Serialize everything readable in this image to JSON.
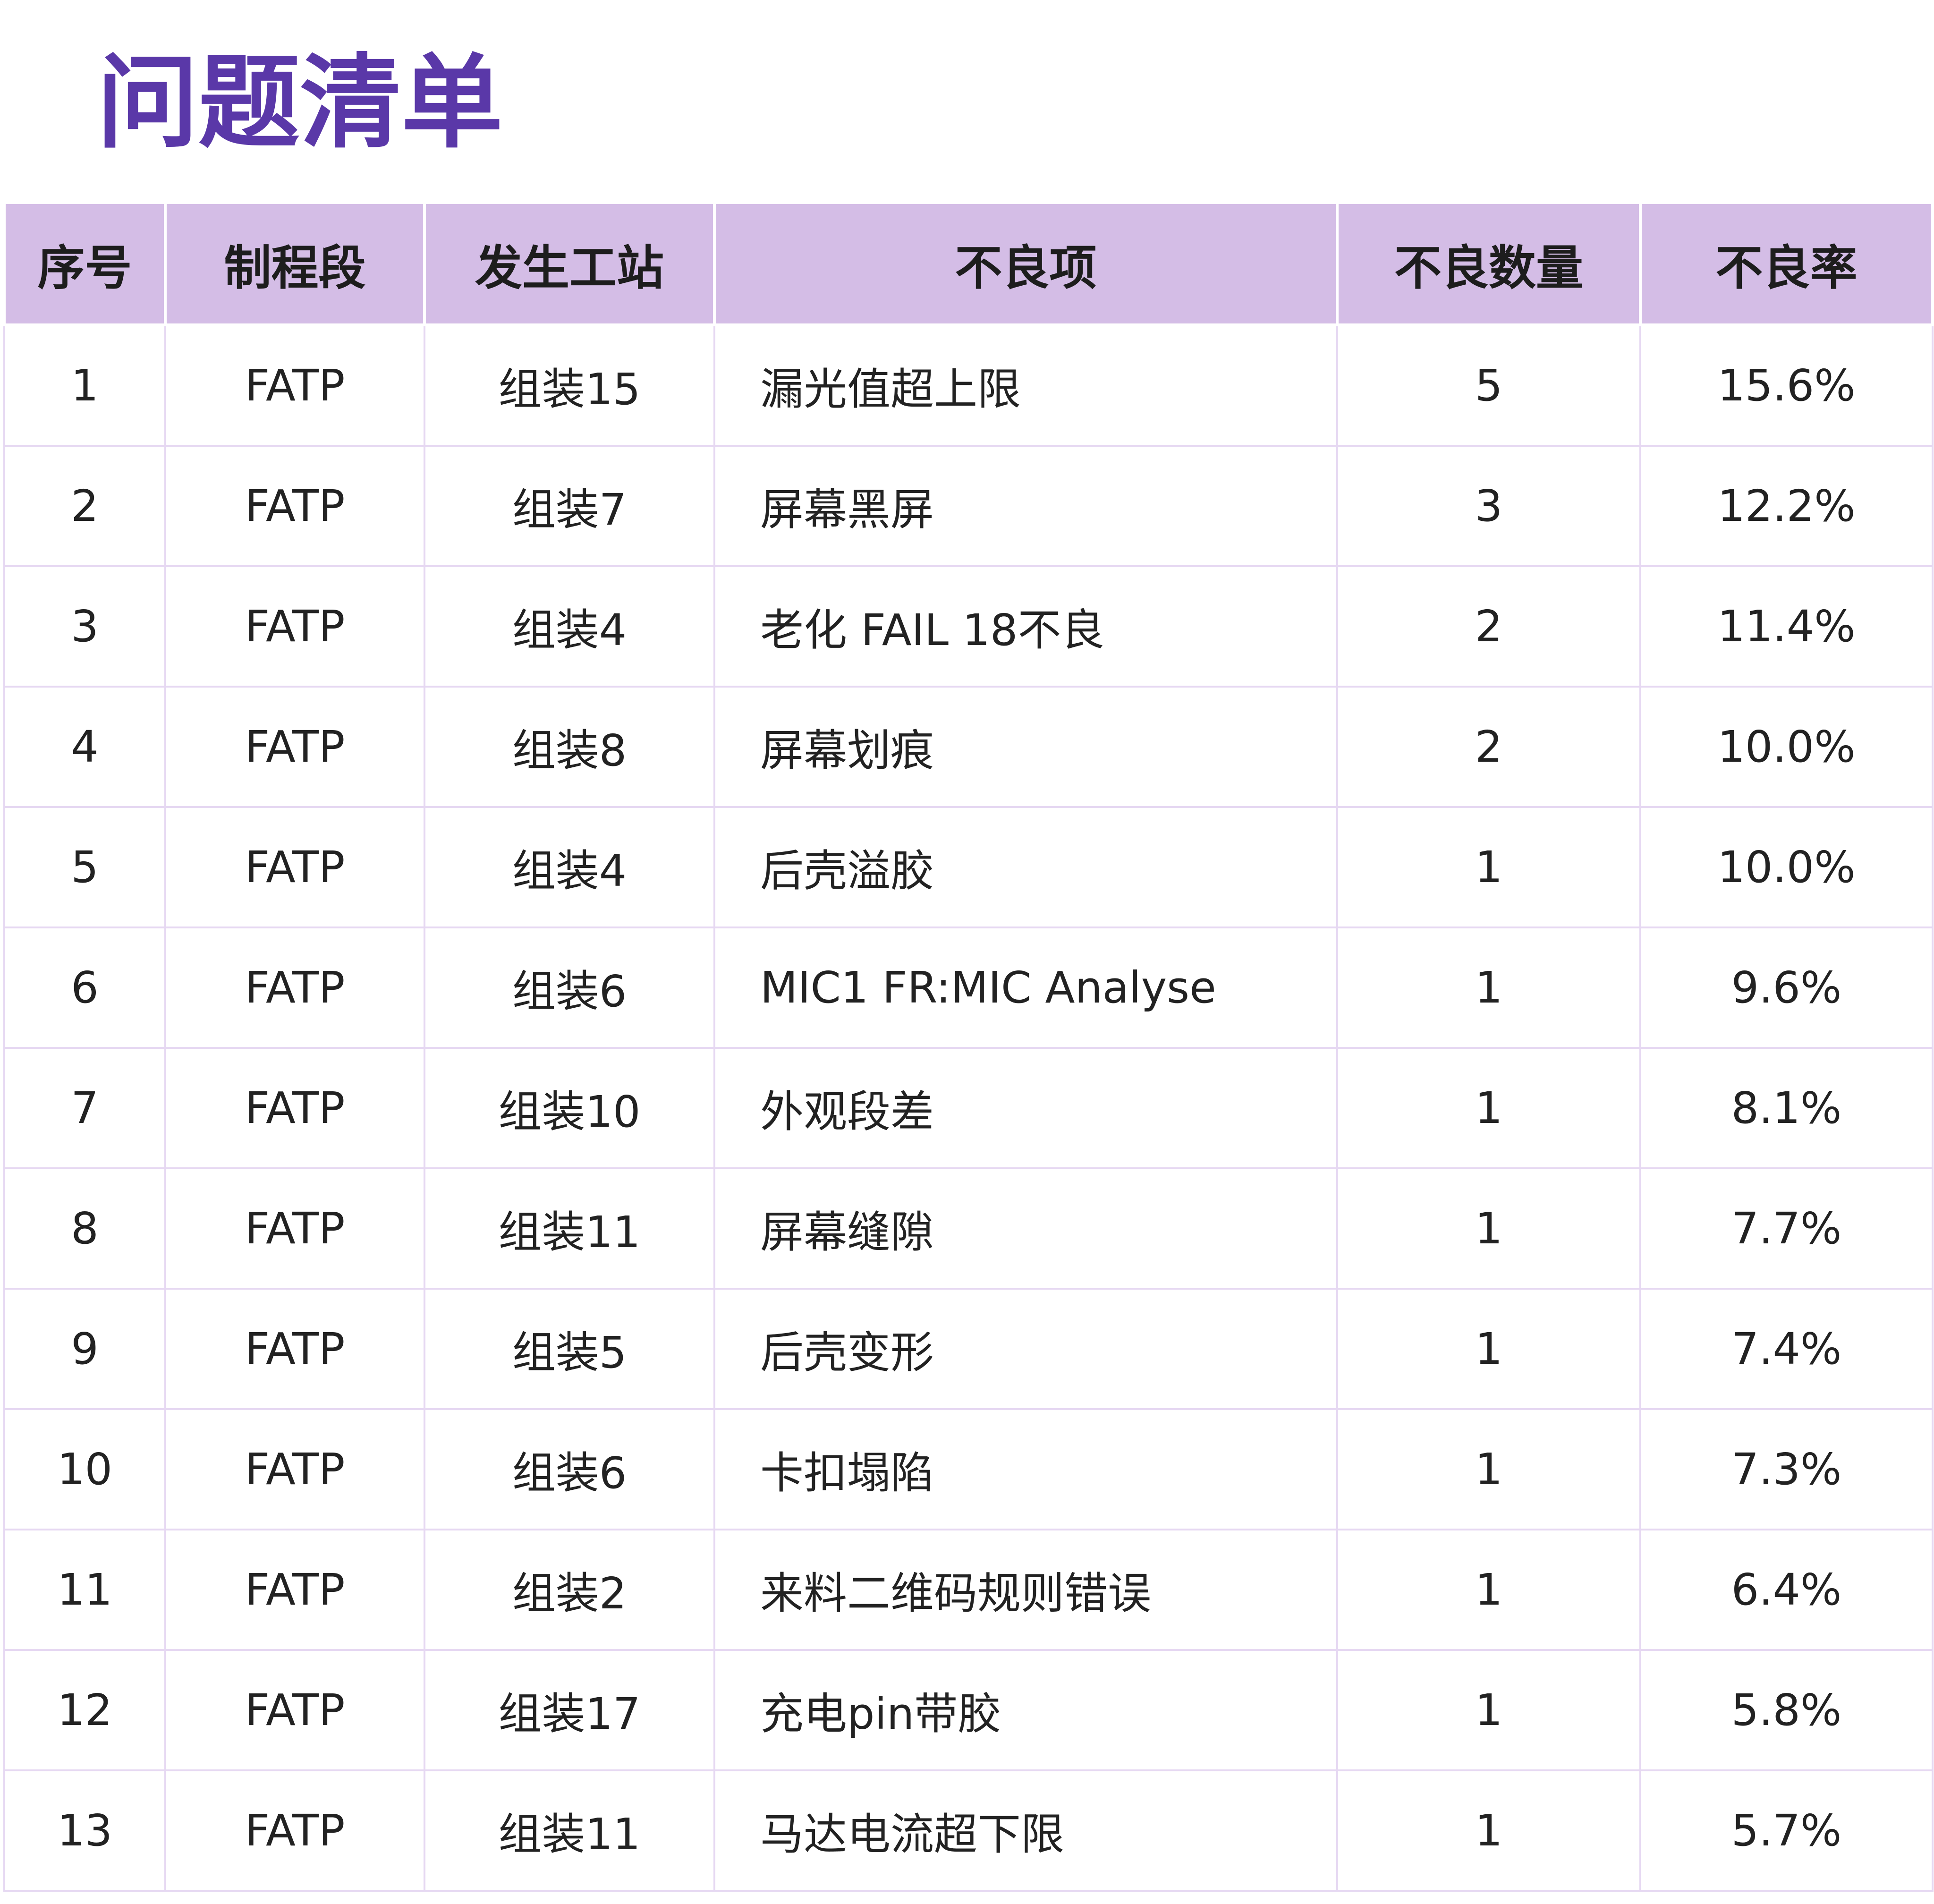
{
  "header": {
    "title": "问题清单"
  },
  "table": {
    "columns": [
      "序号",
      "制程段",
      "发生工站",
      "不良项",
      "不良数量",
      "不良率"
    ],
    "rows": [
      [
        "1",
        "FATP",
        "组装15",
        "漏光值超上限",
        "5",
        "15.6%"
      ],
      [
        "2",
        "FATP",
        "组装7",
        "屏幕黑屏",
        "3",
        "12.2%"
      ],
      [
        "3",
        "FATP",
        "组装4",
        "老化 FAIL 18不良",
        "2",
        "11.4%"
      ],
      [
        "4",
        "FATP",
        "组装8",
        "屏幕划痕",
        "2",
        "10.0%"
      ],
      [
        "5",
        "FATP",
        "组装4",
        "后壳溢胶",
        "1",
        "10.0%"
      ],
      [
        "6",
        "FATP",
        "组装6",
        "MIC1 FR:MIC Analyse",
        "1",
        "9.6%"
      ],
      [
        "7",
        "FATP",
        "组装10",
        "外观段差",
        "1",
        "8.1%"
      ],
      [
        "8",
        "FATP",
        "组装11",
        "屏幕缝隙",
        "1",
        "7.7%"
      ],
      [
        "9",
        "FATP",
        "组装5",
        "后壳变形",
        "1",
        "7.4%"
      ],
      [
        "10",
        "FATP",
        "组装6",
        "卡扣塌陷",
        "1",
        "7.3%"
      ],
      [
        "11",
        "FATP",
        "组装2",
        "来料二维码规则错误",
        "1",
        "6.4%"
      ],
      [
        "12",
        "FATP",
        "组装17",
        "充电pin带胶",
        "1",
        "5.8%"
      ],
      [
        "13",
        "FATP",
        "组装11",
        "马达电流超下限",
        "1",
        "5.7%"
      ]
    ]
  }
}
